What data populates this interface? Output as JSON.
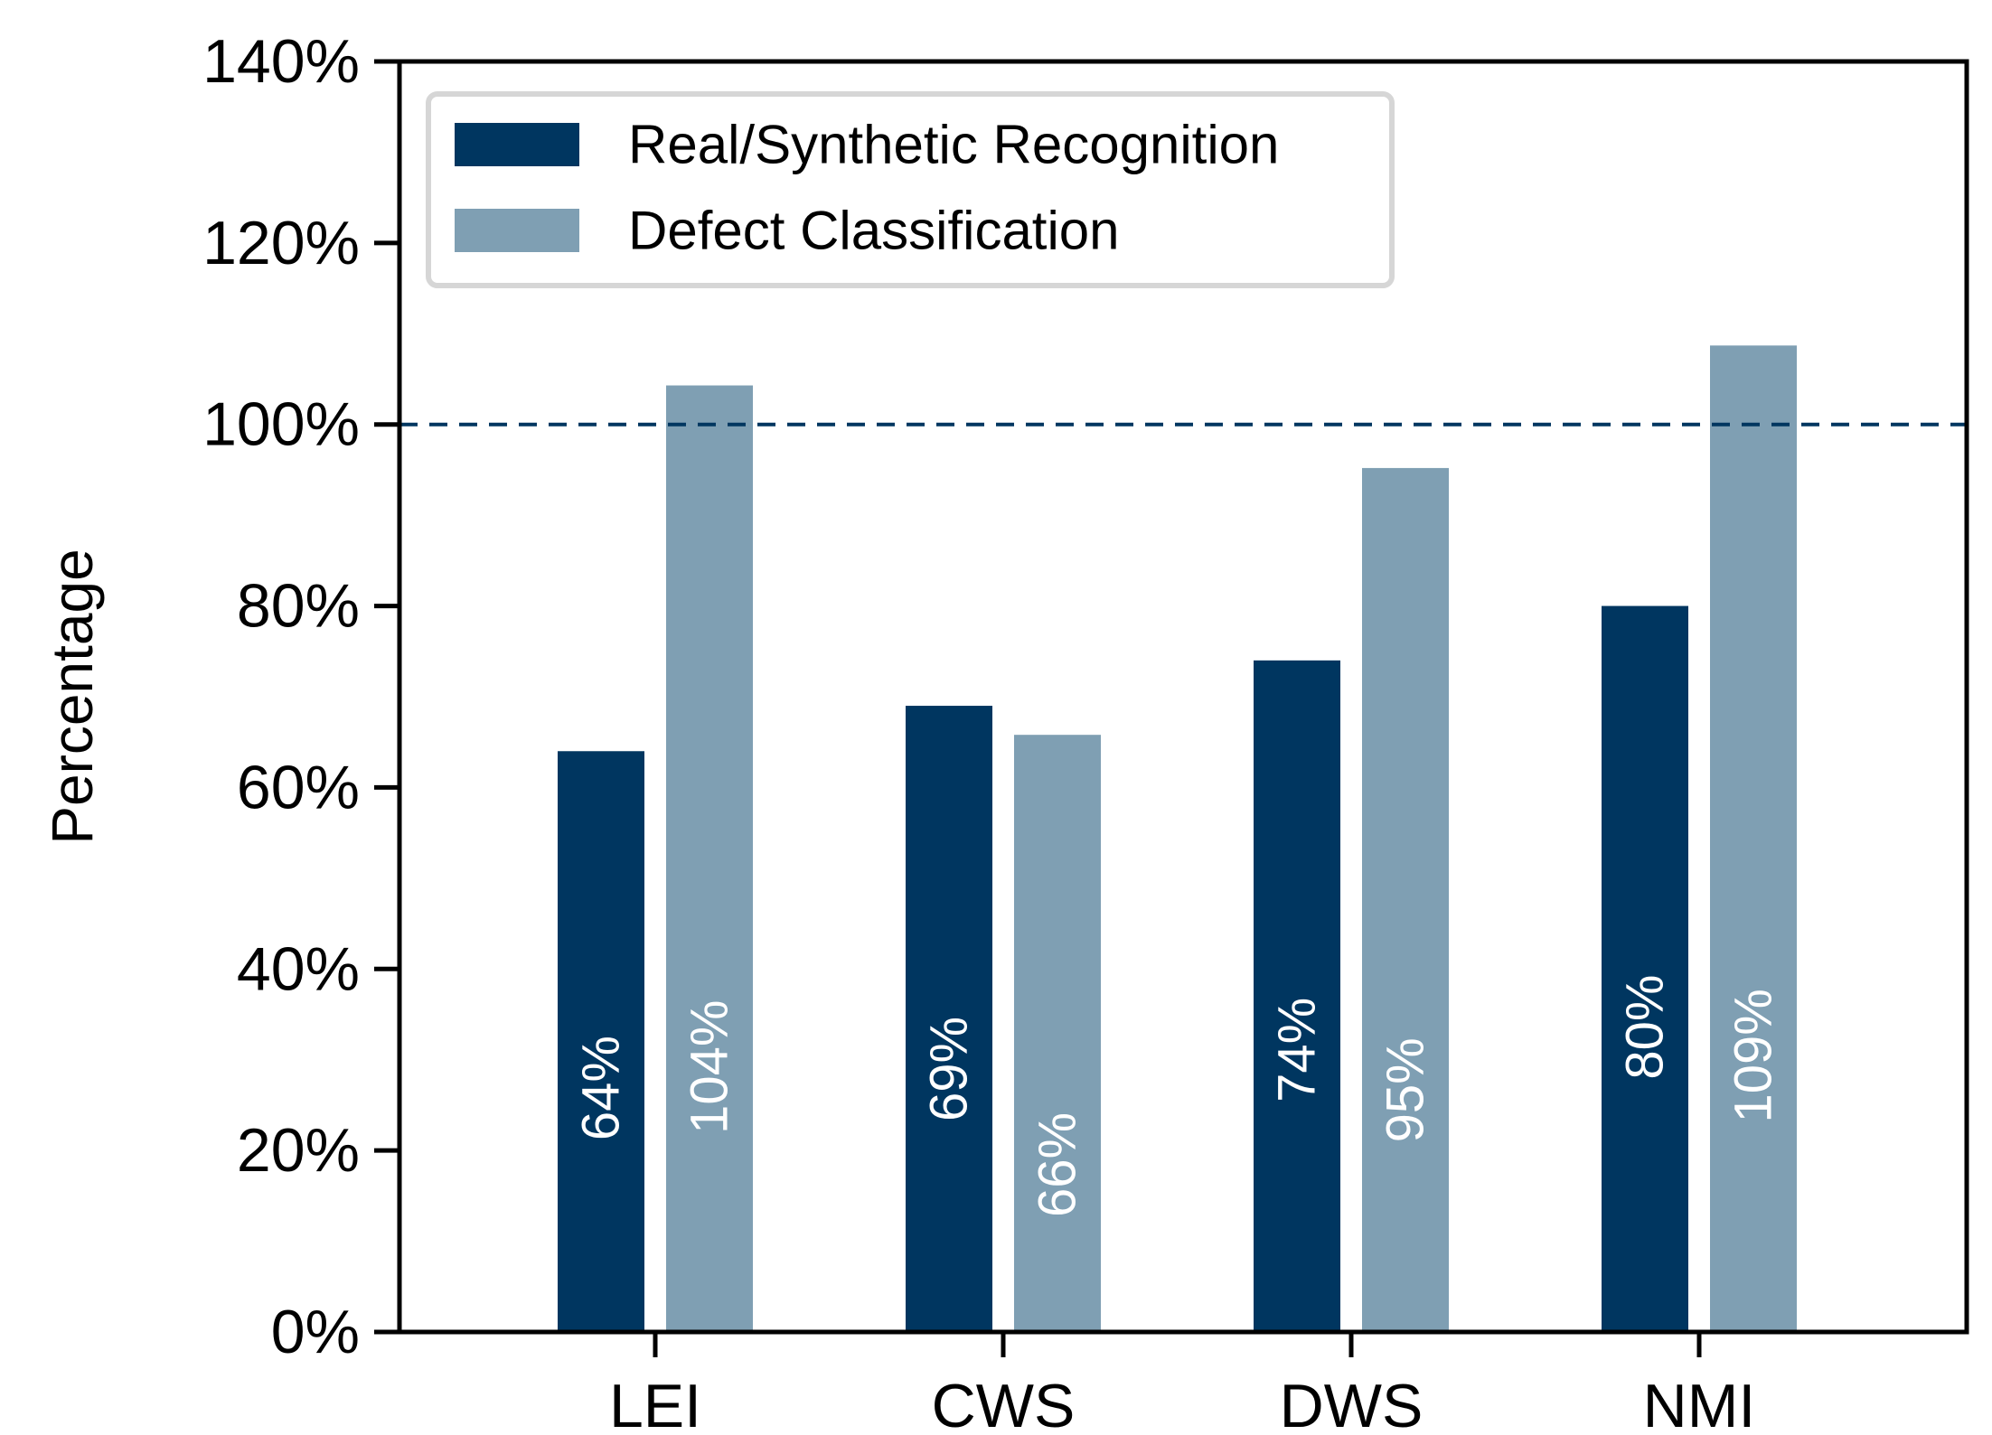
{
  "chart_data": {
    "type": "bar",
    "title": "",
    "xlabel": "",
    "ylabel": "Percentage",
    "ylim": [
      0,
      140
    ],
    "yticks": [
      0,
      20,
      40,
      60,
      80,
      100,
      120,
      140
    ],
    "ytick_labels": [
      "0%",
      "20%",
      "40%",
      "60%",
      "80%",
      "100%",
      "120%",
      "140%"
    ],
    "categories": [
      "LEI",
      "CWS",
      "DWS",
      "NMI"
    ],
    "series": [
      {
        "name": "Real/Synthetic Recognition",
        "color": "#003660",
        "values": [
          64,
          69,
          74,
          80
        ],
        "labels": [
          "64%",
          "69%",
          "74%",
          "80%"
        ]
      },
      {
        "name": "Defect Classification",
        "color": "#7f9fb3",
        "values": [
          104.3,
          65.8,
          95.2,
          108.7
        ],
        "labels": [
          "104%",
          "66%",
          "95%",
          "109%"
        ]
      }
    ],
    "reference_line": {
      "value": 100,
      "style": "dashed",
      "color": "#003660"
    },
    "legend_position": "top-left",
    "grid": false
  }
}
